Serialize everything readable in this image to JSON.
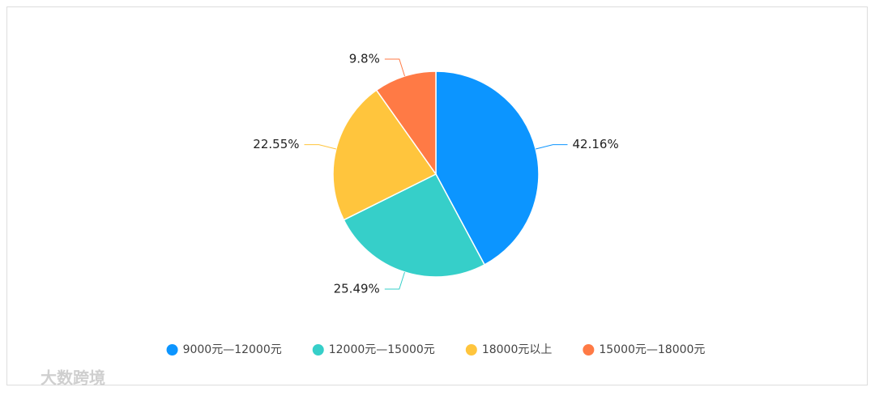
{
  "chart_data": {
    "type": "pie",
    "categories": [
      "9000元—12000元",
      "12000元—15000元",
      "18000元以上",
      "15000元—18000元"
    ],
    "values": [
      42.16,
      25.49,
      22.55,
      9.8
    ],
    "value_labels": [
      "42.16%",
      "25.49%",
      "22.55%",
      "9.8%"
    ],
    "colors": [
      "#0c95ff",
      "#36cfc9",
      "#ffc53d",
      "#ff7a45"
    ],
    "legend": "bottom"
  },
  "watermark": "大数跨境"
}
